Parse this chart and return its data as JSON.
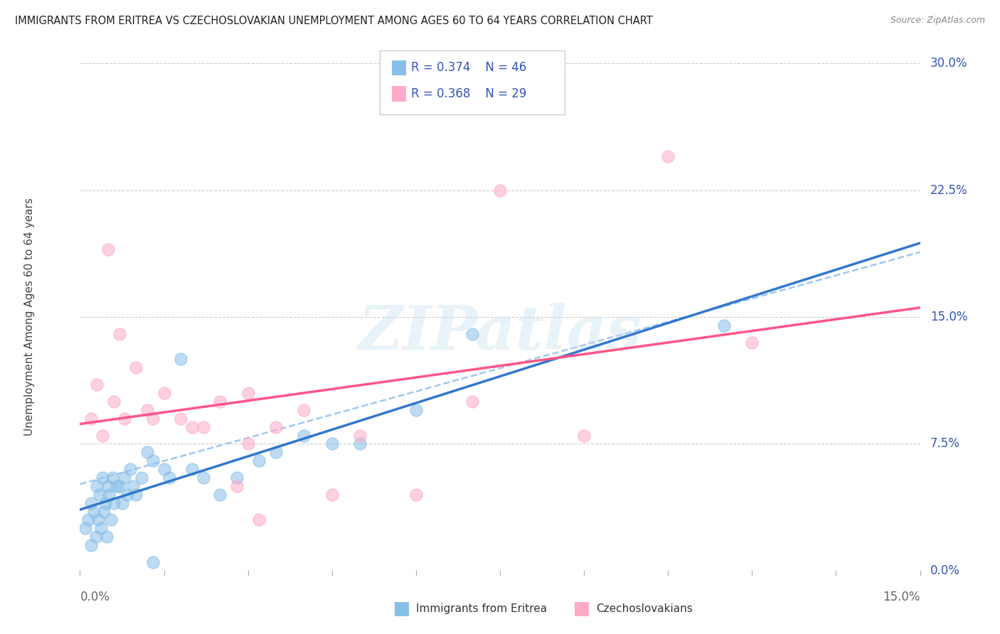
{
  "title": "IMMIGRANTS FROM ERITREA VS CZECHOSLOVAKIAN UNEMPLOYMENT AMONG AGES 60 TO 64 YEARS CORRELATION CHART",
  "source": "Source: ZipAtlas.com",
  "ylabel": "Unemployment Among Ages 60 to 64 years",
  "yaxis_values": [
    0.0,
    7.5,
    15.0,
    22.5,
    30.0
  ],
  "xmin": 0.0,
  "xmax": 15.0,
  "ymin": 0.0,
  "ymax": 30.0,
  "legend_r1": "0.374",
  "legend_n1": "46",
  "legend_r2": "0.368",
  "legend_n2": "29",
  "legend_label1": "Immigrants from Eritrea",
  "legend_label2": "Czechoslovakians",
  "color_blue": "#88bfe8",
  "color_pink": "#ffaac8",
  "color_blue_line": "#3377cc",
  "color_pink_line": "#ff5588",
  "color_r_value": "#3355bb",
  "scatter_blue_x": [
    0.1,
    0.15,
    0.2,
    0.2,
    0.25,
    0.28,
    0.3,
    0.32,
    0.35,
    0.38,
    0.4,
    0.42,
    0.45,
    0.48,
    0.5,
    0.52,
    0.55,
    0.58,
    0.6,
    0.65,
    0.7,
    0.75,
    0.8,
    0.85,
    0.9,
    0.95,
    1.0,
    1.1,
    1.2,
    1.3,
    1.5,
    1.6,
    1.8,
    2.0,
    2.2,
    2.5,
    2.8,
    3.2,
    3.5,
    4.0,
    4.5,
    5.0,
    6.0,
    7.0,
    11.5,
    1.3
  ],
  "scatter_blue_y": [
    2.5,
    3.0,
    1.5,
    4.0,
    3.5,
    2.0,
    5.0,
    3.0,
    4.5,
    2.5,
    5.5,
    3.5,
    4.0,
    2.0,
    5.0,
    4.5,
    3.0,
    5.5,
    4.0,
    5.0,
    5.0,
    4.0,
    5.5,
    4.5,
    6.0,
    5.0,
    4.5,
    5.5,
    7.0,
    6.5,
    6.0,
    5.5,
    12.5,
    6.0,
    5.5,
    4.5,
    5.5,
    6.5,
    7.0,
    8.0,
    7.5,
    7.5,
    9.5,
    14.0,
    14.5,
    0.5
  ],
  "scatter_pink_x": [
    0.2,
    0.3,
    0.4,
    0.5,
    0.6,
    0.7,
    0.8,
    1.0,
    1.2,
    1.3,
    1.5,
    1.8,
    2.0,
    2.2,
    2.5,
    3.0,
    3.2,
    3.5,
    4.0,
    4.5,
    5.0,
    6.0,
    7.0,
    7.5,
    9.0,
    10.5,
    3.0,
    2.8,
    12.0
  ],
  "scatter_pink_y": [
    9.0,
    11.0,
    8.0,
    19.0,
    10.0,
    14.0,
    9.0,
    12.0,
    9.5,
    9.0,
    10.5,
    9.0,
    8.5,
    8.5,
    10.0,
    10.5,
    3.0,
    8.5,
    9.5,
    4.5,
    8.0,
    4.5,
    10.0,
    22.5,
    8.0,
    24.5,
    7.5,
    5.0,
    13.5
  ],
  "watermark_text": "ZIPatlas",
  "grid_color": "#cccccc",
  "bg_color": "#ffffff"
}
